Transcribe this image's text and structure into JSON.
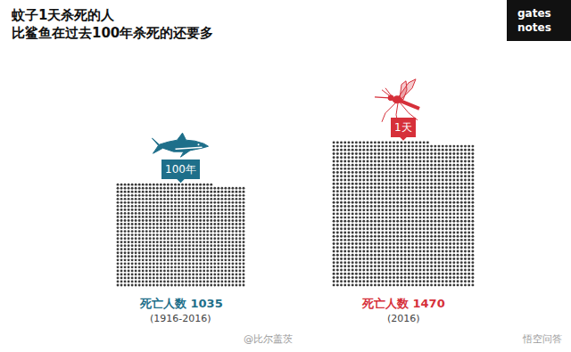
{
  "chart_data": {
    "type": "waffle",
    "title": "蚊子1天杀死的人\n比鲨鱼在过去100年杀死的还要多",
    "categories": [
      "100年",
      "1天"
    ],
    "values": [
      1035,
      1470
    ],
    "value_labels": [
      "死亡人数 1035",
      "死亡人数 1470"
    ],
    "periods": [
      "(1916-2016)",
      "(2016)"
    ],
    "colors": [
      "#1e6f8a",
      "#d6303a"
    ],
    "data_labels": true,
    "tick_labels": false,
    "logo": "gates\nnotes",
    "watermark": "@比尔盖茨",
    "source": "悟空问答"
  }
}
